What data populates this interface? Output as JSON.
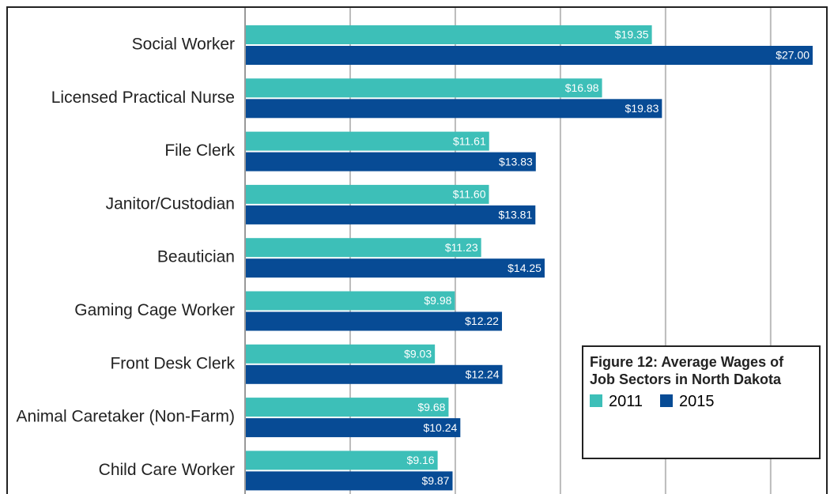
{
  "chart_data": {
    "type": "bar",
    "orientation": "horizontal",
    "title": "Figure 12: Average Wages of Job Sectors in North Dakota",
    "categories": [
      "Social Worker",
      "Licensed Practical Nurse",
      "File Clerk",
      "Janitor/Custodian",
      "Beautician",
      "Gaming Cage Worker",
      "Front Desk Clerk",
      "Animal Caretaker (Non-Farm)",
      "Child Care Worker"
    ],
    "series": [
      {
        "name": "2011",
        "color": "#3dbfb8",
        "values": [
          19.35,
          16.98,
          11.61,
          11.6,
          11.23,
          9.98,
          9.03,
          9.68,
          9.16
        ],
        "value_labels": [
          "$19.35",
          "$16.98",
          "$11.61",
          "$11.60",
          "$11.23",
          "$9.98",
          "$9.03",
          "$9.68",
          "$9.16"
        ]
      },
      {
        "name": "2015",
        "color": "#074b95",
        "values": [
          27.0,
          19.83,
          13.83,
          13.81,
          14.25,
          12.22,
          12.24,
          10.24,
          9.87
        ],
        "value_labels": [
          "$27.00",
          "$19.83",
          "$13.83",
          "$13.81",
          "$14.25",
          "$12.22",
          "$12.24",
          "$10.24",
          "$9.87"
        ]
      }
    ],
    "xlim": [
      0,
      27.6
    ],
    "xticks": [
      0,
      5,
      10,
      15,
      20,
      25
    ],
    "grid": true,
    "legend": "lower right"
  }
}
